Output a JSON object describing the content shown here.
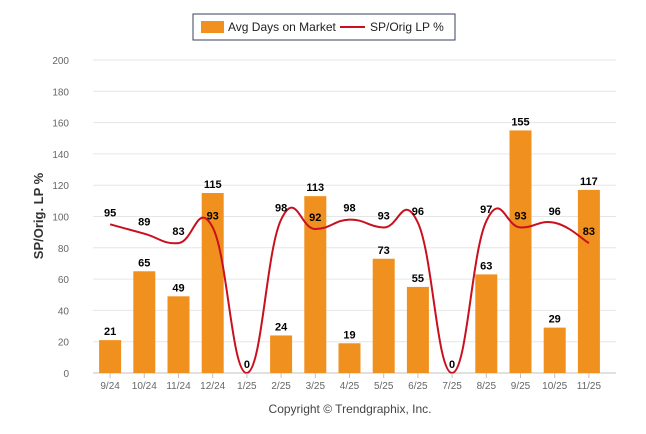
{
  "chart_data": {
    "type": "bar",
    "categories": [
      "9/24",
      "10/24",
      "11/24",
      "12/24",
      "1/25",
      "2/25",
      "3/25",
      "4/25",
      "5/25",
      "6/25",
      "7/25",
      "8/25",
      "9/25",
      "10/25",
      "11/25"
    ],
    "series": [
      {
        "name": "Avg Days on Market",
        "type": "bar",
        "color": "#f0901e",
        "values": [
          21,
          65,
          49,
          115,
          0,
          24,
          113,
          19,
          73,
          55,
          0,
          63,
          155,
          29,
          117
        ]
      },
      {
        "name": "SP/Orig LP %",
        "type": "line",
        "color": "#c8101e",
        "values": [
          95,
          89,
          83,
          93,
          0,
          98,
          92,
          98,
          93,
          96,
          0,
          97,
          93,
          96,
          83
        ]
      }
    ],
    "ylabel": "SP/Orig. LP %",
    "xlabel": "",
    "ylim": [
      0,
      200
    ],
    "yticks": [
      0,
      20,
      40,
      60,
      80,
      100,
      120,
      140,
      160,
      180,
      200
    ],
    "grid": true,
    "legend": "top-center"
  },
  "footer": {
    "copyright": "Copyright © Trendgraphix, Inc."
  }
}
